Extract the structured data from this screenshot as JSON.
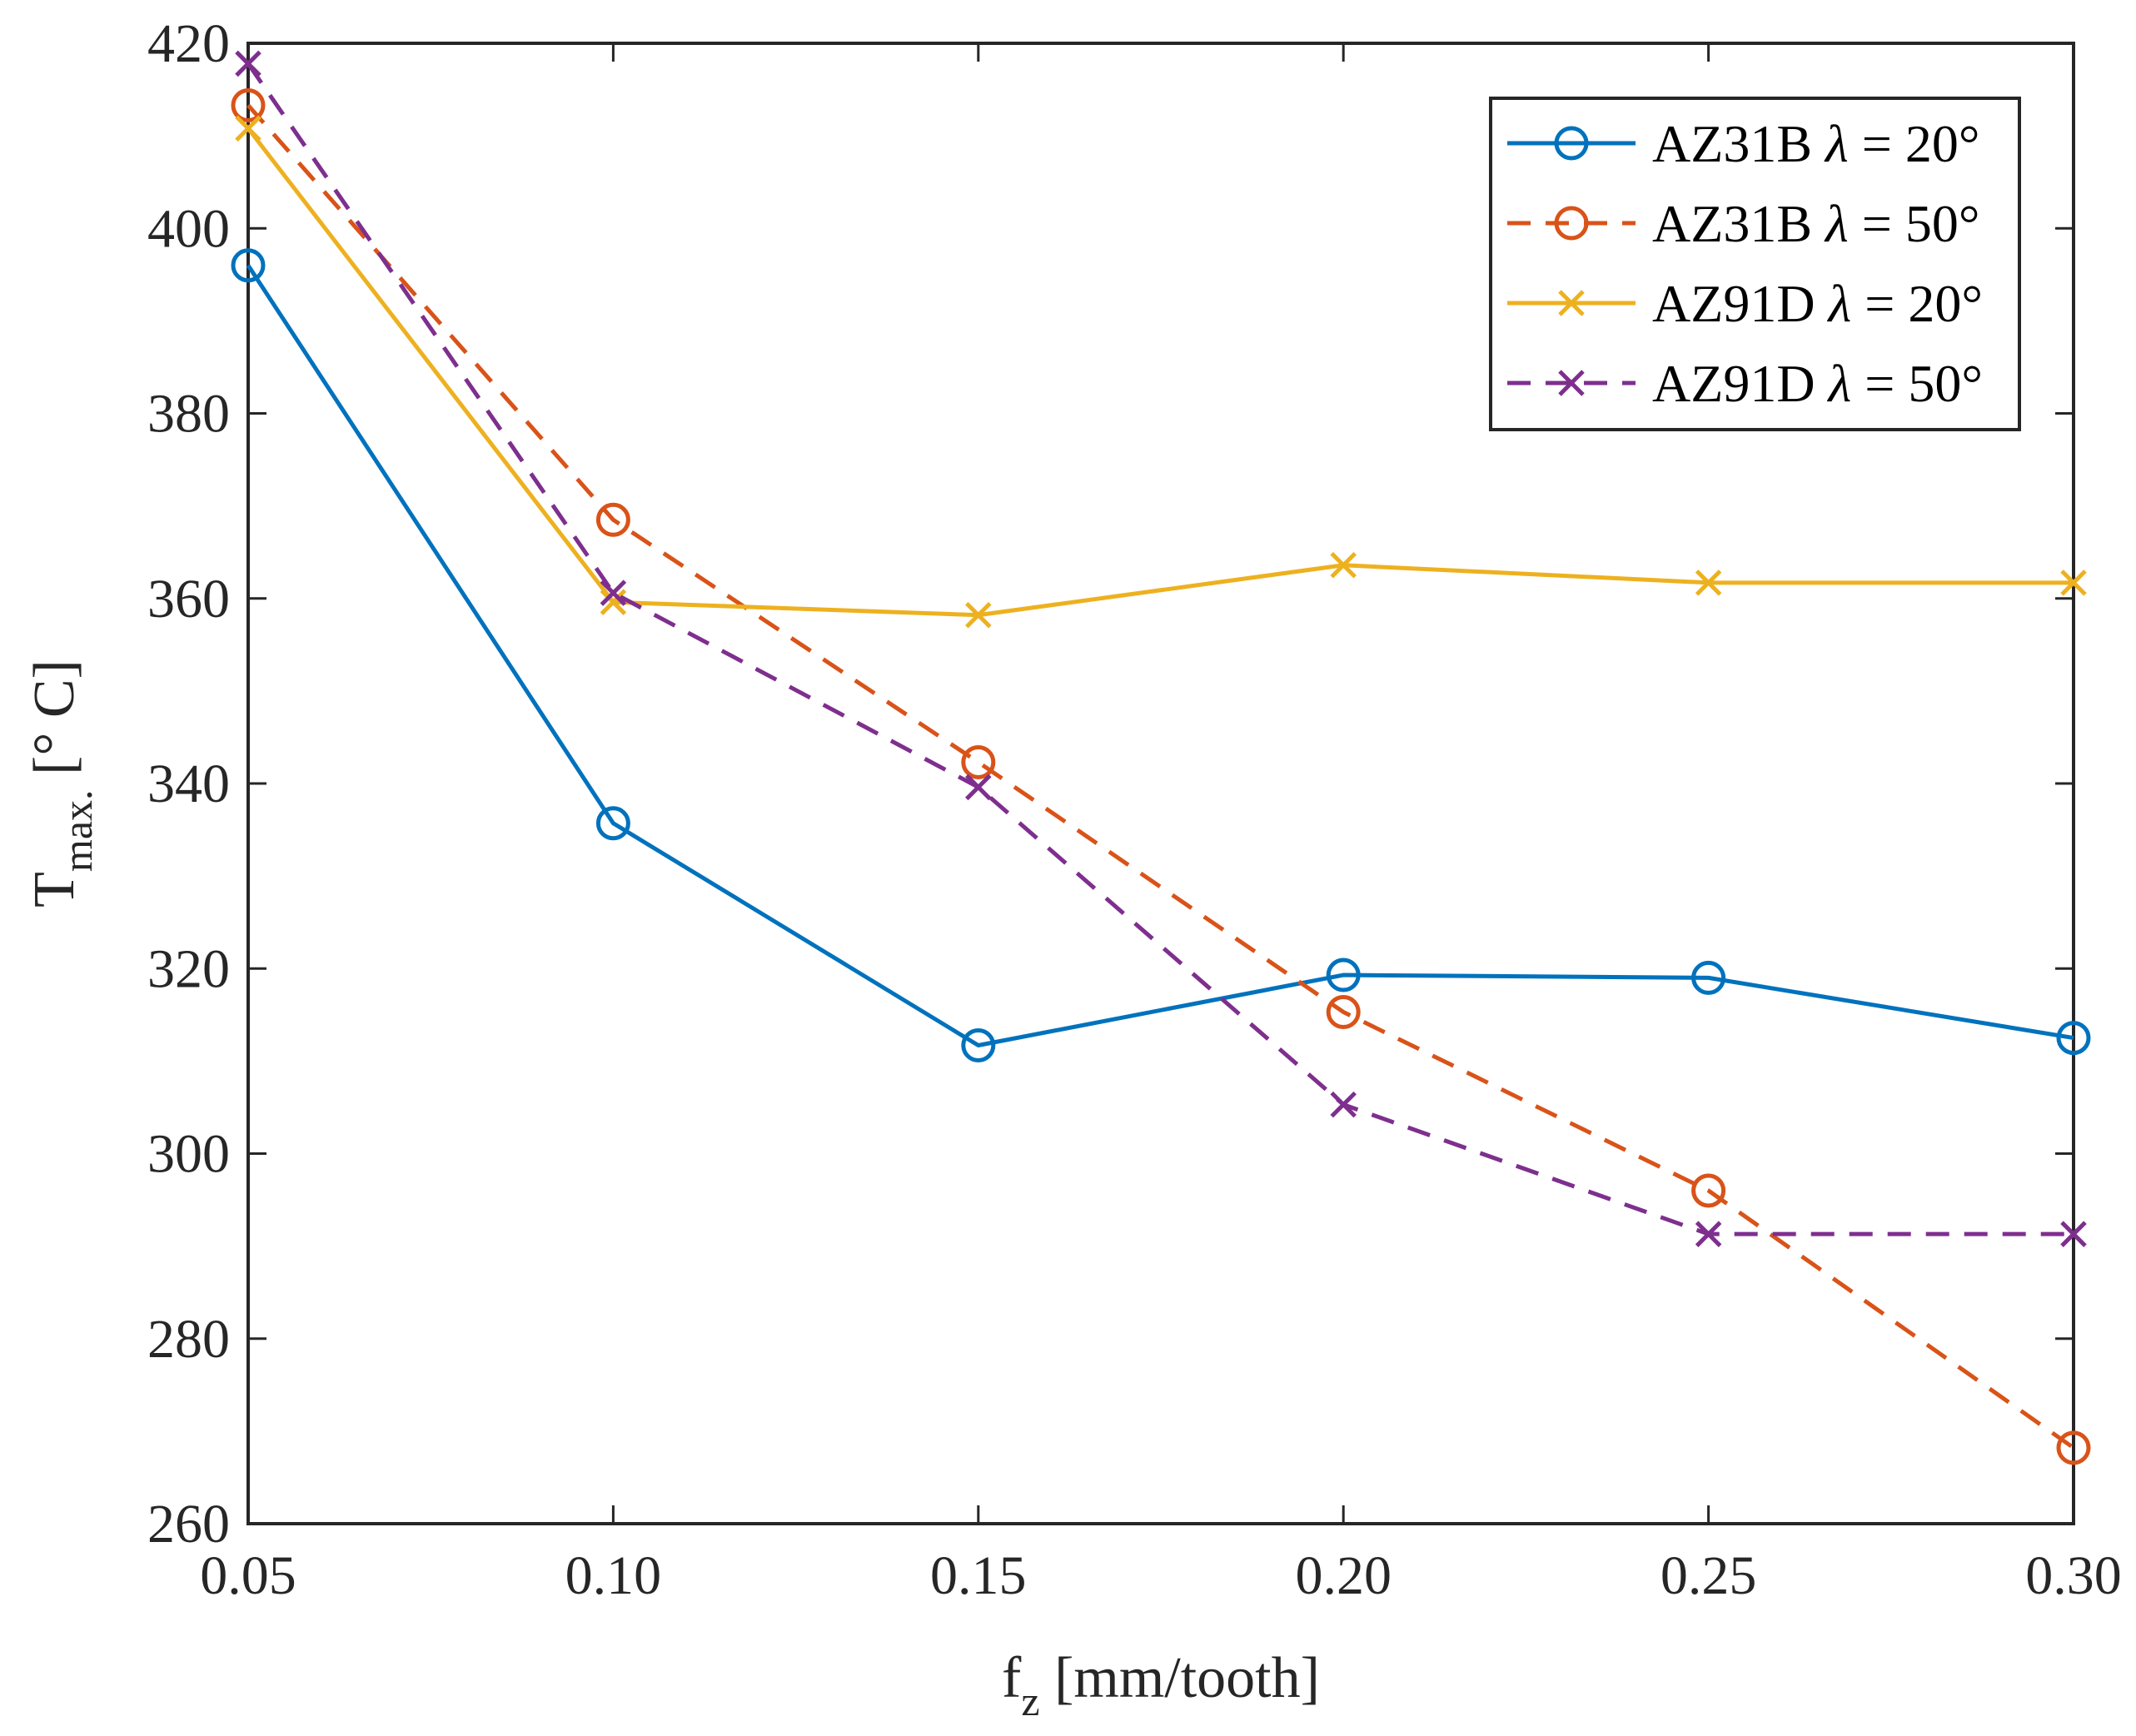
{
  "chart_data": {
    "type": "line",
    "title": "",
    "xlabel": {
      "main": "f",
      "sub": "z",
      "rest": " [mm/tooth]"
    },
    "ylabel": {
      "main": "T",
      "sub": "max.",
      "rest": " [° C]"
    },
    "xlim": [
      0.05,
      0.3
    ],
    "ylim": [
      260,
      420
    ],
    "x_ticks": [
      0.05,
      0.1,
      0.15,
      0.2,
      0.25,
      0.3
    ],
    "x_tick_labels": [
      "0.05",
      "0.10",
      "0.15",
      "0.20",
      "0.25",
      "0.30"
    ],
    "y_ticks": [
      260,
      280,
      300,
      320,
      340,
      360,
      380,
      400,
      420
    ],
    "y_tick_labels": [
      "260",
      "280",
      "300",
      "320",
      "340",
      "360",
      "380",
      "400",
      "420"
    ],
    "grid": false,
    "legend_position": "top-right",
    "x": [
      0.05,
      0.1,
      0.15,
      0.2,
      0.25,
      0.3
    ],
    "series": [
      {
        "name": "AZ31B λ = 20°",
        "label_main": "AZ31B ",
        "label_lambda": "λ",
        "label_rest": " = 20°",
        "values": [
          396,
          335.7,
          311.7,
          319.3,
          319,
          312.5
        ],
        "color": "#0072BD",
        "marker": "circle",
        "dash": "solid"
      },
      {
        "name": "AZ31B λ = 50°",
        "label_main": "AZ31B ",
        "label_lambda": "λ",
        "label_rest": " = 50°",
        "values": [
          413.3,
          368.5,
          342.3,
          315.3,
          296,
          268.2
        ],
        "color": "#D95319",
        "marker": "circle",
        "dash": "dashed"
      },
      {
        "name": "AZ91D λ = 20°",
        "label_main": "AZ91D ",
        "label_lambda": "λ",
        "label_rest": " = 20°",
        "values": [
          410.8,
          359.6,
          358.2,
          363.6,
          361.7,
          361.7
        ],
        "color": "#EDB120",
        "marker": "x",
        "dash": "solid"
      },
      {
        "name": "AZ91D λ = 50°",
        "label_main": "AZ91D ",
        "label_lambda": "λ",
        "label_rest": " = 50°",
        "values": [
          417.8,
          360.6,
          339.6,
          305.3,
          291.3,
          291.3
        ],
        "color": "#7E2F8E",
        "marker": "x",
        "dash": "dashed"
      }
    ]
  }
}
